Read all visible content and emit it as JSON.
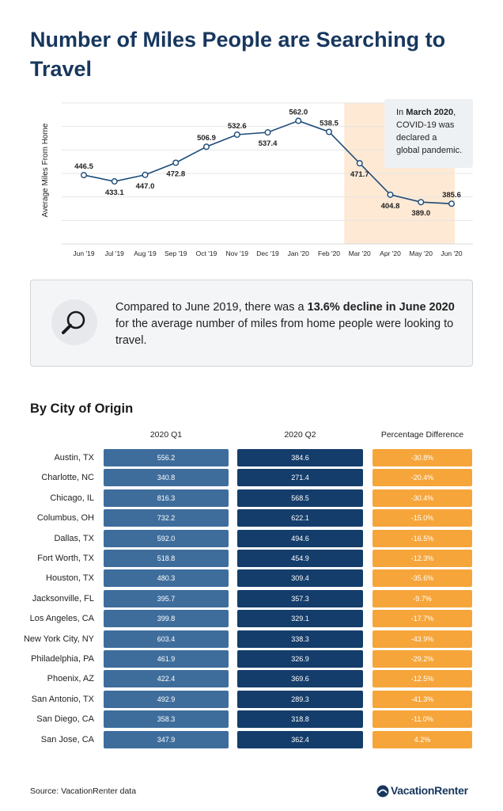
{
  "title": "Number of Miles People are Searching to Travel",
  "chart_data": [
    {
      "type": "line",
      "ylabel": "Average Miles From Home",
      "categories": [
        "Jun '19",
        "Jul '19",
        "Aug '19",
        "Sep '19",
        "Oct '19",
        "Nov '19",
        "Dec '19",
        "Jan '20",
        "Feb '20",
        "Mar '20",
        "Apr '20",
        "May '20",
        "Jun '20"
      ],
      "values": [
        446.5,
        433.1,
        447.0,
        472.8,
        506.9,
        532.6,
        537.4,
        562.0,
        538.5,
        471.7,
        404.8,
        389.0,
        385.6
      ],
      "ylim": [
        300,
        600
      ],
      "grid": true,
      "line_color": "#1c4a78",
      "highlight": {
        "from": "Mar '20",
        "to": "Jun '20",
        "color": "#fde9d4"
      },
      "annotation": {
        "before": "In ",
        "bold": "March 2020",
        "after": ", COVID-19 was declared a global pandemic."
      }
    },
    {
      "type": "table",
      "title": "By City of Origin",
      "columns": [
        "2020 Q1",
        "2020 Q2",
        "Percentage Difference"
      ],
      "colors": {
        "q1": "#3e6d9c",
        "q2": "#143d6b",
        "pct": "#f6a53a"
      },
      "rows": [
        {
          "city": "Austin, TX",
          "q1": "556.2",
          "q2": "384.6",
          "pct": "-30.8%"
        },
        {
          "city": "Charlotte, NC",
          "q1": "340.8",
          "q2": "271.4",
          "pct": "-20.4%"
        },
        {
          "city": "Chicago, IL",
          "q1": "816.3",
          "q2": "568.5",
          "pct": "-30.4%"
        },
        {
          "city": "Columbus, OH",
          "q1": "732.2",
          "q2": "622.1",
          "pct": "-15.0%"
        },
        {
          "city": "Dallas, TX",
          "q1": "592.0",
          "q2": "494.6",
          "pct": "-16.5%"
        },
        {
          "city": "Fort Worth, TX",
          "q1": "518.8",
          "q2": "454.9",
          "pct": "-12.3%"
        },
        {
          "city": "Houston, TX",
          "q1": "480.3",
          "q2": "309.4",
          "pct": "-35.6%"
        },
        {
          "city": "Jacksonville, FL",
          "q1": "395.7",
          "q2": "357.3",
          "pct": "-9.7%"
        },
        {
          "city": "Los Angeles, CA",
          "q1": "399.8",
          "q2": "329.1",
          "pct": "-17.7%"
        },
        {
          "city": "New York City, NY",
          "q1": "603.4",
          "q2": "338.3",
          "pct": "-43.9%"
        },
        {
          "city": "Philadelphia, PA",
          "q1": "461.9",
          "q2": "326.9",
          "pct": "-29.2%"
        },
        {
          "city": "Phoenix, AZ",
          "q1": "422.4",
          "q2": "369.6",
          "pct": "-12.5%"
        },
        {
          "city": "San Antonio, TX",
          "q1": "492.9",
          "q2": "289.3",
          "pct": "-41.3%"
        },
        {
          "city": "San Diego, CA",
          "q1": "358.3",
          "q2": "318.8",
          "pct": "-11.0%"
        },
        {
          "city": "San Jose, CA",
          "q1": "347.9",
          "q2": "362.4",
          "pct": "4.2%"
        }
      ]
    }
  ],
  "callout": {
    "icon": "magnifier-icon",
    "text_before": "Compared to June 2019, there was a ",
    "text_bold": "13.6% decline in June 2020",
    "text_after": " for the average number of miles from home people were looking to travel."
  },
  "source": "Source: VacationRenter data",
  "brand": {
    "name": "VacationRenter",
    "icon": "vacationrenter-logo-icon",
    "color": "#17375e"
  }
}
